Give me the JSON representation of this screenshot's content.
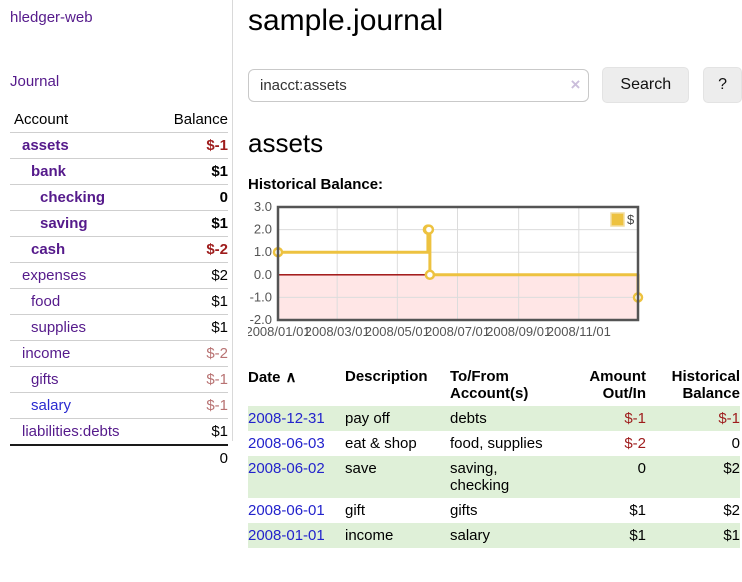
{
  "brand": "hledger-web",
  "sidebar": {
    "journal_label": "Journal",
    "account_header": "Account",
    "balance_header": "Balance",
    "accounts": [
      {
        "name": "assets",
        "balance": "$-1"
      },
      {
        "name": "bank",
        "balance": "$1"
      },
      {
        "name": "checking",
        "balance": "0"
      },
      {
        "name": "saving",
        "balance": "$1"
      },
      {
        "name": "cash",
        "balance": "$-2"
      },
      {
        "name": "expenses",
        "balance": "$2"
      },
      {
        "name": "food",
        "balance": "$1"
      },
      {
        "name": "supplies",
        "balance": "$1"
      },
      {
        "name": "income",
        "balance": "$-2"
      },
      {
        "name": "gifts",
        "balance": "$-1"
      },
      {
        "name": "salary",
        "balance": "$-1"
      },
      {
        "name": "liabilities:debts",
        "balance": "$1"
      }
    ],
    "total": "0"
  },
  "header": {
    "title": "sample.journal"
  },
  "search": {
    "query": "inacct:assets",
    "clear_icon": "×",
    "button_label": "Search",
    "help_label": "?"
  },
  "account_page": {
    "title": "assets",
    "chart_label": "Historical Balance:"
  },
  "chart_data": {
    "type": "line",
    "title": "Historical Balance",
    "step": true,
    "series": [
      {
        "name": "$",
        "color": "#edc240",
        "points": [
          [
            "2008-01-01",
            1
          ],
          [
            "2008-06-01",
            2
          ],
          [
            "2008-06-02",
            2
          ],
          [
            "2008-06-03",
            0
          ],
          [
            "2008-12-31",
            -1
          ]
        ]
      }
    ],
    "xlim": [
      "2008-01-01",
      "2008-12-31"
    ],
    "ylim": [
      -2,
      3
    ],
    "y_ticks": [
      3.0,
      2.0,
      1.0,
      0.0,
      -1.0,
      -2.0
    ],
    "x_ticks": [
      "2008/01/01",
      "2008/03/01",
      "2008/05/01",
      "2008/07/01",
      "2008/09/01",
      "2008/11/01"
    ],
    "grid": true,
    "legend_position": "top-right",
    "negative_region_color": "#ffe6e6",
    "zero_line_color": "#990000"
  },
  "register": {
    "headers": {
      "date": "Date",
      "sort_icon": "∧",
      "description": "Description",
      "accounts": "To/From Account(s)",
      "amount": "Amount Out/In",
      "balance": "Historical Balance"
    },
    "rows": [
      {
        "date": "2008-12-31",
        "description": "pay off",
        "accounts": "debts",
        "amount": "$-1",
        "balance": "$-1"
      },
      {
        "date": "2008-06-03",
        "description": "eat & shop",
        "accounts": "food, supplies",
        "amount": "$-2",
        "balance": "0"
      },
      {
        "date": "2008-06-02",
        "description": "save",
        "accounts": "saving, checking",
        "amount": "0",
        "balance": "$2"
      },
      {
        "date": "2008-06-01",
        "description": "gift",
        "accounts": "gifts",
        "amount": "$1",
        "balance": "$2"
      },
      {
        "date": "2008-01-01",
        "description": "income",
        "accounts": "salary",
        "amount": "$1",
        "balance": "$1"
      }
    ]
  }
}
